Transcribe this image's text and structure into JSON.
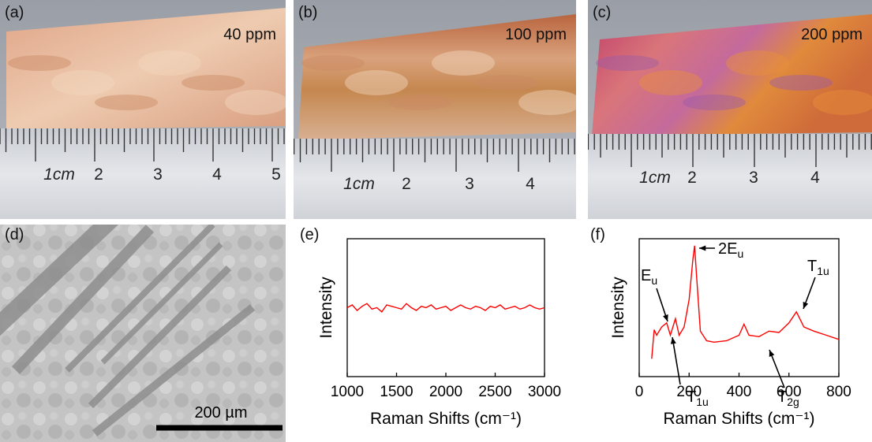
{
  "photos": [
    {
      "label": "(a)",
      "concentration": "40 ppm",
      "ruler_labels": [
        "1cm",
        "2",
        "3",
        "4",
        "5"
      ]
    },
    {
      "label": "(b)",
      "concentration": "100 ppm",
      "ruler_labels": [
        "1cm",
        "2",
        "3",
        "4"
      ]
    },
    {
      "label": "(c)",
      "concentration": "200 ppm",
      "ruler_labels": [
        "1cm",
        "2",
        "3",
        "4"
      ]
    }
  ],
  "sem": {
    "label": "(d)",
    "scale_bar": "200 µm"
  },
  "chart_data": [
    {
      "type": "line",
      "panel_label": "(e)",
      "color": "#ff0000",
      "x": [
        1000,
        1050,
        1100,
        1150,
        1200,
        1250,
        1300,
        1350,
        1400,
        1450,
        1500,
        1550,
        1600,
        1650,
        1700,
        1750,
        1800,
        1850,
        1900,
        1950,
        2000,
        2050,
        2100,
        2150,
        2200,
        2250,
        2300,
        2350,
        2400,
        2450,
        2500,
        2550,
        2600,
        2650,
        2700,
        2750,
        2800,
        2850,
        2900,
        2950,
        3000
      ],
      "values": [
        0.5,
        0.52,
        0.48,
        0.51,
        0.53,
        0.49,
        0.5,
        0.47,
        0.52,
        0.51,
        0.5,
        0.49,
        0.53,
        0.5,
        0.48,
        0.51,
        0.5,
        0.52,
        0.49,
        0.5,
        0.51,
        0.48,
        0.5,
        0.52,
        0.5,
        0.49,
        0.51,
        0.5,
        0.48,
        0.51,
        0.5,
        0.52,
        0.49,
        0.5,
        0.51,
        0.49,
        0.5,
        0.52,
        0.5,
        0.49,
        0.5
      ],
      "xlim": [
        1000,
        3000
      ],
      "xticks": [
        1000,
        1500,
        2000,
        2500,
        3000
      ],
      "ylim": [
        0,
        1
      ],
      "xlabel": "Raman Shifts (cm⁻¹)",
      "ylabel": "Intensity"
    },
    {
      "type": "line",
      "panel_label": "(f)",
      "color": "#ff0000",
      "x": [
        50,
        60,
        70,
        90,
        110,
        125,
        145,
        160,
        180,
        200,
        215,
        222,
        230,
        245,
        270,
        300,
        350,
        400,
        420,
        440,
        480,
        520,
        560,
        600,
        630,
        660,
        700,
        750,
        800
      ],
      "values": [
        0.13,
        0.34,
        0.3,
        0.36,
        0.39,
        0.3,
        0.42,
        0.3,
        0.36,
        0.56,
        0.85,
        0.95,
        0.73,
        0.33,
        0.26,
        0.25,
        0.26,
        0.3,
        0.38,
        0.3,
        0.29,
        0.33,
        0.32,
        0.39,
        0.47,
        0.36,
        0.33,
        0.3,
        0.27
      ],
      "xlim": [
        0,
        800
      ],
      "xticks": [
        0,
        200,
        400,
        600,
        800
      ],
      "ylim": [
        0,
        1
      ],
      "xlabel": "Raman Shifts (cm⁻¹)",
      "ylabel": "Intensity",
      "annotations": [
        {
          "base": "E",
          "sub": "u"
        },
        {
          "base": "2E",
          "sub": "u"
        },
        {
          "base": "T",
          "sub": "1u"
        },
        {
          "base": "T",
          "sub": "2g"
        },
        {
          "base": "T",
          "sub": "1u"
        }
      ]
    }
  ]
}
